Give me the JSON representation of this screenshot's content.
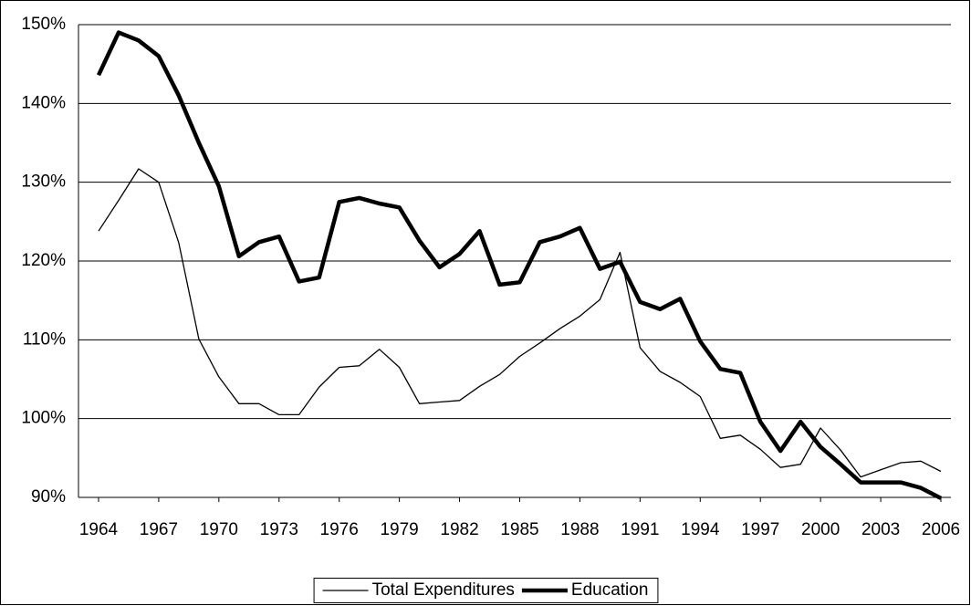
{
  "chart_data": {
    "type": "line",
    "x": [
      1964,
      1965,
      1966,
      1967,
      1968,
      1969,
      1970,
      1971,
      1972,
      1973,
      1974,
      1975,
      1976,
      1977,
      1978,
      1979,
      1980,
      1981,
      1982,
      1983,
      1984,
      1985,
      1986,
      1987,
      1988,
      1989,
      1990,
      1991,
      1992,
      1993,
      1994,
      1995,
      1996,
      1997,
      1998,
      1999,
      2000,
      2001,
      2002,
      2003,
      2004,
      2005,
      2006
    ],
    "series": [
      {
        "name": "Total Expenditures",
        "color": "#000000",
        "width": 1.3,
        "values": [
          123.8,
          127.7,
          131.7,
          130,
          122.3,
          110.1,
          105.3,
          101.9,
          101.9,
          100.5,
          100.5,
          104,
          106.5,
          106.7,
          108.8,
          106.5,
          101.9,
          102.1,
          102.3,
          104.1,
          105.6,
          107.9,
          109.6,
          111.4,
          113,
          115.1,
          121.1,
          109,
          106,
          104.6,
          102.8,
          97.5,
          97.9,
          96.1,
          93.8,
          94.2,
          98.8,
          96,
          92.6,
          93.5,
          94.4,
          94.6,
          93.3
        ]
      },
      {
        "name": "Education",
        "color": "#000000",
        "width": 4.5,
        "values": [
          143.6,
          149,
          148,
          146,
          141,
          135,
          129.5,
          120.6,
          122.4,
          123.1,
          117.4,
          117.9,
          127.5,
          128,
          127.3,
          126.8,
          122.6,
          119.2,
          120.9,
          123.8,
          117,
          117.3,
          122.4,
          123.1,
          124.2,
          119,
          119.9,
          114.8,
          113.9,
          115.2,
          109.8,
          106.3,
          105.8,
          99.6,
          95.9,
          99.6,
          96.4,
          94.2,
          91.9,
          91.9,
          91.9,
          91.2,
          89.9
        ]
      }
    ],
    "xlim": [
      1963,
      2006.5
    ],
    "xticks": [
      1964,
      1967,
      1970,
      1973,
      1976,
      1979,
      1982,
      1985,
      1988,
      1991,
      1994,
      1997,
      2000,
      2003,
      2006
    ],
    "ylim": [
      90,
      150
    ],
    "yticks": [
      {
        "value": 90,
        "label": "90%"
      },
      {
        "value": 100,
        "label": "100%"
      },
      {
        "value": 110,
        "label": "110%"
      },
      {
        "value": 120,
        "label": "120%"
      },
      {
        "value": 130,
        "label": "130%"
      },
      {
        "value": 140,
        "label": "140%"
      },
      {
        "value": 150,
        "label": "150%"
      }
    ],
    "grid": true,
    "legend": "bottom"
  }
}
